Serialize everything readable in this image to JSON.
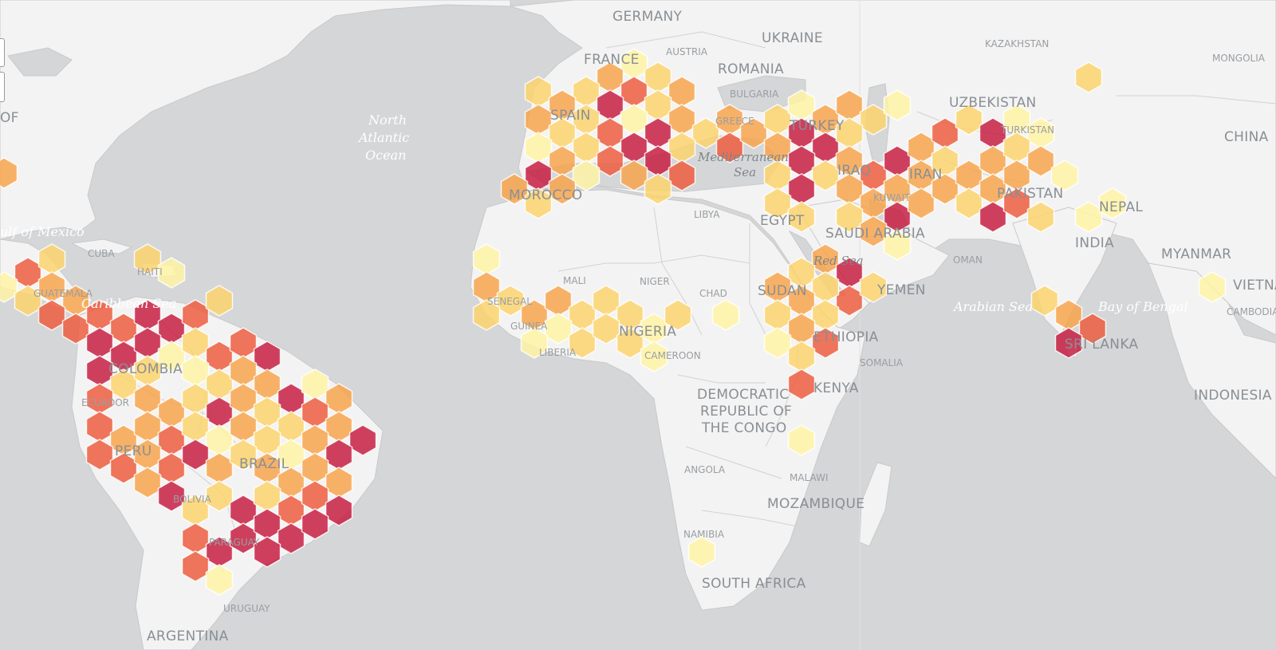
{
  "map": {
    "colors": {
      "ocean": "#d4d6d8",
      "land": "#f3f3f3",
      "border": "#c9c9c9",
      "bin_1": "#fff3a6",
      "bin_2": "#fbd36f",
      "bin_3": "#f7a44d",
      "bin_4": "#ec5d3f",
      "bin_5": "#c71f43"
    },
    "labels": {
      "germany": "GERMANY",
      "ukraine": "UKRAINE",
      "france": "FRANCE",
      "austria": "AUSTRIA",
      "romania": "ROMANIA",
      "bulgaria": "BULGARIA",
      "kazakhstan": "KAZAKHSTAN",
      "mongolia": "MONGOLIA",
      "uzbekistan": "UZBEKISTAN",
      "china": "CHINA",
      "spain": "SPAIN",
      "greece": "GREECE",
      "turkey": "TURKEY",
      "turkistan": "TURKISTAN",
      "mediterranean_sea": "Mediterranean",
      "sea": "Sea",
      "morocco": "MOROCCO",
      "libya": "LIBYA",
      "egypt": "EGYPT",
      "iraq": "IRAQ",
      "iran": "IRAN",
      "kuwait": "KUWAIT",
      "saudi_arabia": "SAUDI ARABIA",
      "pakistan": "PAKISTAN",
      "nepal": "NEPAL",
      "india": "INDIA",
      "myanmar": "MYANMAR",
      "vietnam": "VIETNA",
      "cambodia": "CAMBODIA",
      "oman": "OMAN",
      "red_sea": "Red Sea",
      "yemen": "YEMEN",
      "sudan": "SUDAN",
      "chad": "CHAD",
      "niger": "NIGER",
      "mali": "MALI",
      "senegal": "SENEGAL",
      "guinea": "GUINEA",
      "liberia": "LIBERIA",
      "nigeria": "NIGERIA",
      "cameroon": "CAMEROON",
      "ethiopia": "ETHIOPIA",
      "somalia": "SOMALIA",
      "kenya": "KENYA",
      "drc_1": "DEMOCRATIC",
      "drc_2": "REPUBLIC OF",
      "drc_3": "THE CONGO",
      "angola": "ANGOLA",
      "malawi": "MALAWI",
      "mozambique": "MOZAMBIQUE",
      "namibia": "NAMIBIA",
      "south_africa": "SOUTH AFRICA",
      "arabian_sea": "Arabian Sea",
      "bay_of_bengal": "Bay of Bengal",
      "sri_lanka": "SRI LANKA",
      "indonesia": "INDONESIA",
      "north_atlantic_1": "North",
      "north_atlantic_2": "Atlantic",
      "north_atlantic_3": "Ocean",
      "gulf_of_mexico": "ulf of Mexico",
      "cuba": "CUBA",
      "haiti": "HAITI",
      "caribbean_sea": "Caribbean Sea",
      "guatemala": "GUATEMALA",
      "colombia": "COLOMBIA",
      "ecuador": "ECUADOR",
      "peru": "PERU",
      "brazil": "BRAZIL",
      "bolivia": "BOLIVIA",
      "paraguay": "PARAGUAY",
      "uruguay": "URUGUAY",
      "argentina": "ARGENTINA",
      "us_fragment": "OF"
    }
  }
}
